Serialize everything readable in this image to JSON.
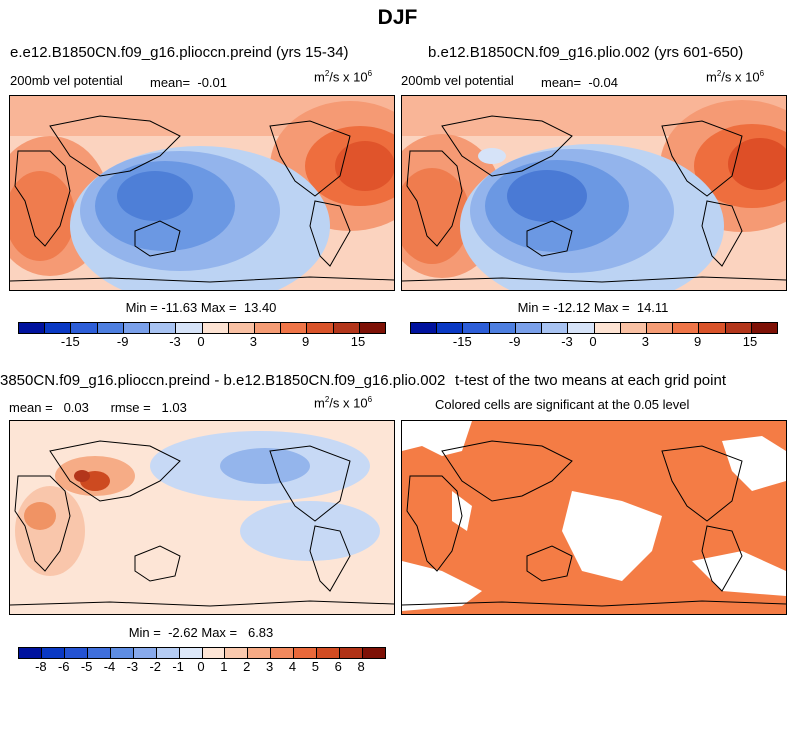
{
  "title": "DJF",
  "colors": {
    "pos_warm": "#f07f4f",
    "neg_cool": "#4e82d9",
    "sig_fill": "#f47c45",
    "coast": "#000000"
  },
  "chart_data": [
    {
      "type": "heatmap",
      "title": "e.e12.B1850CN.f09_g16.plioccn.preind (yrs 15-34)",
      "subtitle_left": "200mb vel potential",
      "mean_label": "mean=",
      "mean_value": "-0.01",
      "units_base": "m",
      "units_sup": "2",
      "units_mid": "/s x 10",
      "units_exp": "6",
      "min_label": "Min =",
      "min_value": "-11.63",
      "max_label": "Max =",
      "max_value": "13.40",
      "colorbar_ticks": [
        "-15",
        "-9",
        "-3",
        "0",
        "3",
        "9",
        "15"
      ],
      "colorbar_levels": [
        -18,
        -15,
        -12,
        -9,
        -6,
        -3,
        0,
        3,
        6,
        9,
        12,
        15,
        18
      ]
    },
    {
      "type": "heatmap",
      "title": "b.e12.B1850CN.f09_g16.plio.002 (yrs 601-650)",
      "subtitle_left": "200mb vel potential",
      "mean_label": "mean=",
      "mean_value": "-0.04",
      "units_base": "m",
      "units_sup": "2",
      "units_mid": "/s x 10",
      "units_exp": "6",
      "min_label": "Min =",
      "min_value": "-12.12",
      "max_label": "Max =",
      "max_value": "14.11",
      "colorbar_ticks": [
        "-15",
        "-9",
        "-3",
        "0",
        "3",
        "9",
        "15"
      ],
      "colorbar_levels": [
        -18,
        -15,
        -12,
        -9,
        -6,
        -3,
        0,
        3,
        6,
        9,
        12,
        15,
        18
      ]
    },
    {
      "type": "heatmap",
      "title": "3850CN.f09_g16.plioccn.preind - b.e12.B1850CN.f09_g16.plio.002",
      "mean_label": "mean =",
      "mean_value": "0.03",
      "rmse_label": "rmse =",
      "rmse_value": "1.03",
      "units_base": "m",
      "units_sup": "2",
      "units_mid": "/s x 10",
      "units_exp": "6",
      "min_label": "Min =",
      "min_value": "-2.62",
      "max_label": "Max =",
      "max_value": "6.83",
      "colorbar_ticks": [
        "-8",
        "-6",
        "-5",
        "-4",
        "-3",
        "-2",
        "-1",
        "0",
        "1",
        "2",
        "3",
        "4",
        "5",
        "6",
        "8"
      ],
      "colorbar_levels": [
        -10,
        -8,
        -6,
        -5,
        -4,
        -3,
        -2,
        -1,
        0,
        1,
        2,
        3,
        4,
        5,
        6,
        8,
        10
      ]
    },
    {
      "type": "heatmap",
      "title": "t-test of the two means at each grid point",
      "subtitle": "Colored cells are significant at the 0.05 level"
    }
  ]
}
